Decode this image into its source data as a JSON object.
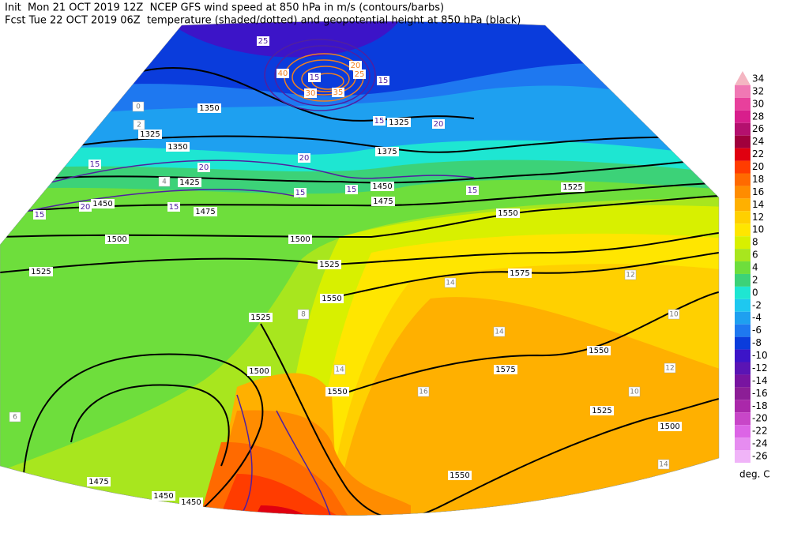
{
  "header": {
    "line1": "Init  Mon 21 OCT 2019 12Z  NCEP GFS wind speed at 850 hPa in m/s (contours/barbs)",
    "line2": "Fcst Tue 22 OCT 2019 06Z  temperature (shaded/dotted) and geopotential height at 850 hPa (black)"
  },
  "colorbar": {
    "unit": "deg. C",
    "entries": [
      {
        "value": 34,
        "color": "#f4b6c2"
      },
      {
        "value": 32,
        "color": "#f078b4"
      },
      {
        "value": 30,
        "color": "#e8409c"
      },
      {
        "value": 28,
        "color": "#d81e8c"
      },
      {
        "value": 26,
        "color": "#b4106e"
      },
      {
        "value": 24,
        "color": "#a0003c"
      },
      {
        "value": 22,
        "color": "#e00010"
      },
      {
        "value": 20,
        "color": "#ff3c00"
      },
      {
        "value": 18,
        "color": "#ff6a00"
      },
      {
        "value": 16,
        "color": "#ff8c00"
      },
      {
        "value": 14,
        "color": "#ffb000"
      },
      {
        "value": 12,
        "color": "#ffd000"
      },
      {
        "value": 10,
        "color": "#ffe600"
      },
      {
        "value": 8,
        "color": "#d8f000"
      },
      {
        "value": 6,
        "color": "#a8e61e"
      },
      {
        "value": 4,
        "color": "#6ede3c"
      },
      {
        "value": 2,
        "color": "#3cd278"
      },
      {
        "value": 0,
        "color": "#1ee6d2"
      },
      {
        "value": -2,
        "color": "#1ec8f0"
      },
      {
        "value": -4,
        "color": "#1ea0f0"
      },
      {
        "value": -6,
        "color": "#1e78f0"
      },
      {
        "value": -8,
        "color": "#0a3cdc"
      },
      {
        "value": -10,
        "color": "#3c14c8"
      },
      {
        "value": -12,
        "color": "#5a14b4"
      },
      {
        "value": -14,
        "color": "#7814a0"
      },
      {
        "value": -16,
        "color": "#8c1e96"
      },
      {
        "value": -18,
        "color": "#aa28aa"
      },
      {
        "value": -20,
        "color": "#c846c8"
      },
      {
        "value": -22,
        "color": "#dc64e6"
      },
      {
        "value": -24,
        "color": "#e68cf0"
      },
      {
        "value": -26,
        "color": "#f0b4f8"
      }
    ]
  },
  "geopotential_height_labels": [
    1350,
    1325,
    1350,
    1425,
    1450,
    1475,
    1500,
    1500,
    1525,
    1525,
    1550,
    1525,
    1500,
    1475,
    1450,
    1450,
    1550,
    1575,
    1550,
    1525,
    1500,
    1550,
    1575,
    1550,
    1525,
    1475,
    1450,
    1375,
    1325
  ],
  "wind_speed_labels": [
    15,
    20,
    25,
    40,
    30,
    35,
    15,
    20,
    15,
    20,
    15,
    15,
    20,
    15,
    15,
    20,
    15,
    15,
    25
  ],
  "temperature_labels": [
    14,
    14,
    12,
    10,
    14,
    16,
    14,
    12,
    10,
    8,
    4,
    2,
    0,
    6
  ]
}
